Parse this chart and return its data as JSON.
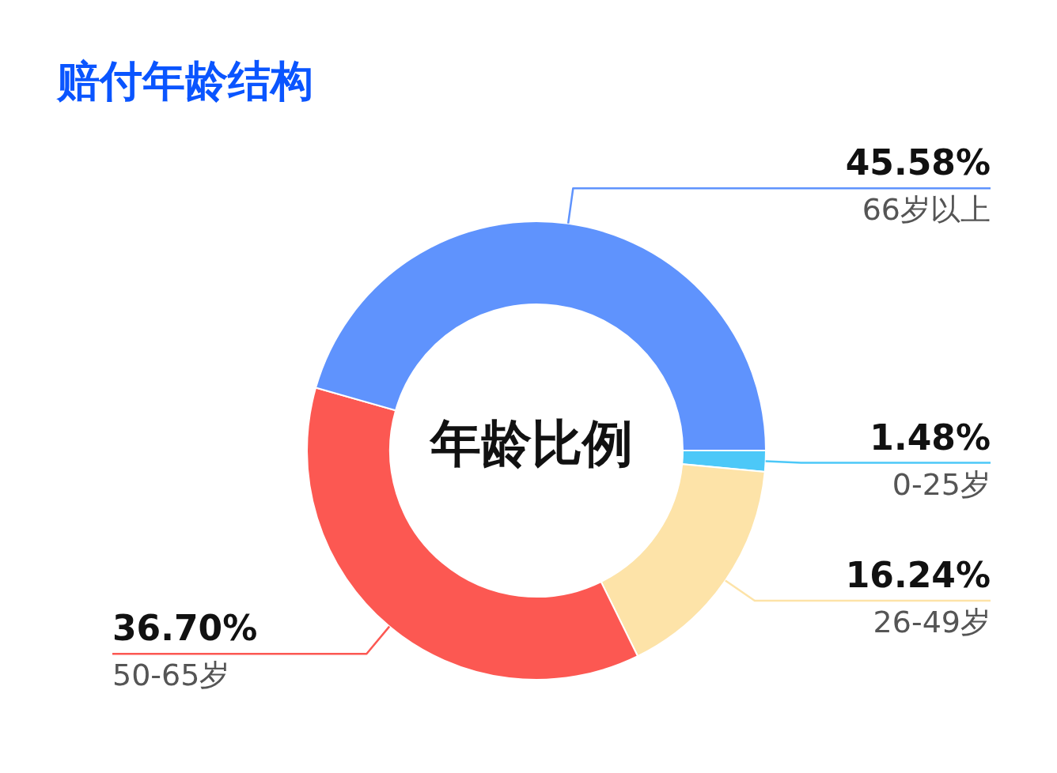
{
  "chart_data": {
    "type": "donut",
    "title": "赔付年龄结构",
    "categories": [
      "0-25岁",
      "26-49岁",
      "50-65岁",
      "66岁以上"
    ],
    "values": [
      1.48,
      16.24,
      36.7,
      45.58
    ],
    "colors": [
      "#4cc8f8",
      "#fde3a8",
      "#fc5852",
      "#5f93fd"
    ],
    "value_labels": [
      "1.48%",
      "16.24%",
      "36.70%",
      "45.58%"
    ],
    "annotations": [
      "年龄比例"
    ]
  }
}
